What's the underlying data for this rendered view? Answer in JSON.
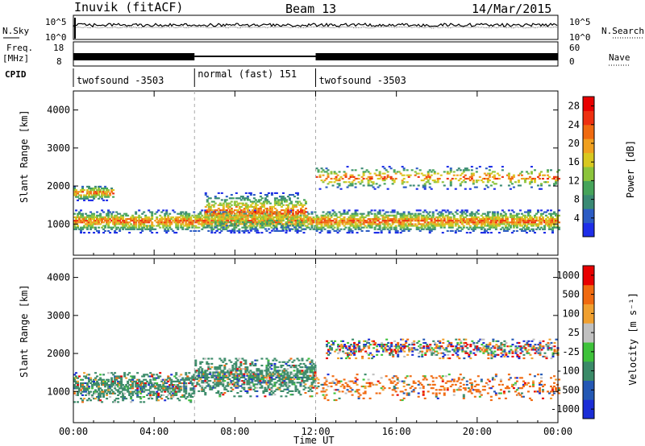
{
  "header": {
    "station": "Inuvik (fitACF)",
    "beam": "Beam 13",
    "date": "14/Mar/2015"
  },
  "strip_labels": {
    "nsky": "N.Sky",
    "nsearch": "N.Search",
    "freq": "Freq.",
    "mhz": "[MHz]",
    "nave": "Nave",
    "cpid": "CPID",
    "nsky_ticks": [
      "10^5",
      "10^0"
    ],
    "nsearch_ticks": [
      "10^5",
      "10^0"
    ],
    "freq_ticks": [
      "18",
      "8"
    ],
    "nave_ticks": [
      "60",
      "0"
    ]
  },
  "cpid_segments": [
    {
      "label": "twofsound -3503",
      "start_hour": 0,
      "end_hour": 6
    },
    {
      "label": "normal (fast) 151",
      "start_hour": 6,
      "end_hour": 12
    },
    {
      "label": "twofsound -3503",
      "start_hour": 12,
      "end_hour": 24
    }
  ],
  "chart_data": [
    {
      "type": "heatmap",
      "title": "",
      "xlabel": "Time UT",
      "ylabel": "Slant Range [km]",
      "x_ticks": [
        "00:00",
        "04:00",
        "08:00",
        "12:00",
        "16:00",
        "20:00",
        "00:00"
      ],
      "xlim_hours": [
        0,
        24
      ],
      "y_ticks": [
        1000,
        2000,
        3000,
        4000
      ],
      "ylim": [
        180,
        4500
      ],
      "colorbar": {
        "label": "Power [dB]",
        "ticks": [
          4,
          8,
          12,
          16,
          20,
          24,
          28
        ],
        "range": [
          0,
          30
        ],
        "colors": [
          "#1e2ee8",
          "#2c5cc4",
          "#3a8a74",
          "#46a45a",
          "#8cc43c",
          "#d8c820",
          "#f0a020",
          "#f06a10",
          "#ee3010",
          "#e80000"
        ]
      },
      "echo_bands": [
        {
          "start_hour": 0.0,
          "end_hour": 24.0,
          "center_km": 1050,
          "width_km": 300,
          "level": 0.9
        },
        {
          "start_hour": 0.0,
          "end_hour": 2.0,
          "center_km": 1800,
          "width_km": 200,
          "level": 0.85
        },
        {
          "start_hour": 6.5,
          "end_hour": 11.5,
          "center_km": 1300,
          "width_km": 500,
          "level": 0.7
        },
        {
          "start_hour": 12.0,
          "end_hour": 24.0,
          "center_km": 2200,
          "width_km": 300,
          "level": 0.35
        }
      ]
    },
    {
      "type": "heatmap",
      "title": "",
      "xlabel": "Time UT",
      "ylabel": "Slant Range [km]",
      "x_ticks": [
        "00:00",
        "04:00",
        "08:00",
        "12:00",
        "16:00",
        "20:00",
        "00:00"
      ],
      "xlim_hours": [
        0,
        24
      ],
      "y_ticks": [
        1000,
        2000,
        3000,
        4000
      ],
      "ylim": [
        180,
        4500
      ],
      "colorbar": {
        "label": "Velocity [m s⁻¹]",
        "ticks": [
          "1000",
          "500",
          "100",
          "25",
          "-25",
          "-100",
          "-500",
          "-1000"
        ],
        "colors": [
          "#1b2dd6",
          "#2458b4",
          "#3a8a68",
          "#3ec23a",
          "#c0c0c0",
          "#f0a030",
          "#f06a10",
          "#e80000"
        ]
      },
      "echo_bands": [
        {
          "start_hour": 0.0,
          "end_hour": 6.0,
          "center_km": 1100,
          "width_km": 400,
          "level": 0.75
        },
        {
          "start_hour": 6.0,
          "end_hour": 12.0,
          "center_km": 1350,
          "width_km": 500,
          "level": 0.8
        },
        {
          "start_hour": 12.0,
          "end_hour": 24.0,
          "center_km": 1100,
          "width_km": 350,
          "level": 0.3
        },
        {
          "start_hour": 12.5,
          "end_hour": 24.0,
          "center_km": 2100,
          "width_km": 250,
          "level": 0.6
        }
      ]
    }
  ]
}
